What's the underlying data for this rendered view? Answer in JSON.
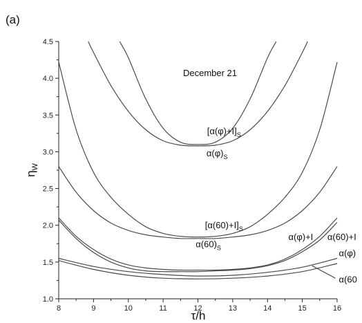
{
  "chart_data": {
    "type": "line",
    "panel_label": "(a)",
    "title": "December 21",
    "xlabel": "τ/h",
    "ylabel_main": "η",
    "ylabel_sub": "W",
    "xlim": [
      8,
      16
    ],
    "ylim": [
      1.0,
      4.5
    ],
    "xticks": [
      8,
      9,
      10,
      11,
      12,
      13,
      14,
      15,
      16
    ],
    "yticks": [
      1.0,
      1.5,
      2.0,
      2.5,
      3.0,
      3.5,
      4.0,
      4.5
    ],
    "series": [
      {
        "name": "[α(φ)+I]S",
        "x": [
          9.75,
          10.0,
          10.5,
          11.0,
          11.5,
          12.0,
          12.5,
          13.0,
          13.5,
          14.0,
          14.25
        ],
        "y": [
          4.5,
          4.28,
          3.72,
          3.32,
          3.13,
          3.1,
          3.13,
          3.32,
          3.72,
          4.28,
          4.5
        ]
      },
      {
        "name": "α(φ)S",
        "x": [
          8.85,
          9.0,
          9.5,
          10.0,
          10.5,
          11.0,
          11.5,
          12.0,
          12.5,
          13.0,
          13.5,
          14.0,
          14.5,
          15.0,
          15.15
        ],
        "y": [
          4.5,
          4.35,
          3.9,
          3.55,
          3.3,
          3.15,
          3.09,
          3.08,
          3.09,
          3.15,
          3.3,
          3.55,
          3.9,
          4.35,
          4.5
        ]
      },
      {
        "name": "[α(60)+I]S",
        "x": [
          8.0,
          8.5,
          9.0,
          9.5,
          10.0,
          10.5,
          11.0,
          11.5,
          12.0,
          12.5,
          13.0,
          13.5,
          14.0,
          14.5,
          15.0,
          15.5,
          16.0
        ],
        "y": [
          4.22,
          3.3,
          2.72,
          2.38,
          2.15,
          1.98,
          1.89,
          1.85,
          1.84,
          1.85,
          1.89,
          1.98,
          2.15,
          2.38,
          2.72,
          3.3,
          4.22
        ]
      },
      {
        "name": "α(60)S",
        "x": [
          8.0,
          8.5,
          9.0,
          9.5,
          10.0,
          10.5,
          11.0,
          11.5,
          12.0,
          12.5,
          13.0,
          13.5,
          14.0,
          14.5,
          15.0,
          15.5,
          16.0
        ],
        "y": [
          2.8,
          2.45,
          2.2,
          2.03,
          1.93,
          1.87,
          1.84,
          1.82,
          1.82,
          1.82,
          1.84,
          1.87,
          1.93,
          2.03,
          2.2,
          2.45,
          2.8
        ]
      },
      {
        "name": "α(φ)+I",
        "x": [
          8.0,
          8.5,
          9.0,
          9.5,
          10.0,
          10.5,
          11.0,
          11.5,
          12.0,
          12.5,
          13.0,
          13.5,
          14.0,
          14.5,
          15.0,
          15.5,
          16.0
        ],
        "y": [
          2.1,
          1.85,
          1.67,
          1.54,
          1.46,
          1.42,
          1.4,
          1.39,
          1.39,
          1.39,
          1.4,
          1.42,
          1.46,
          1.54,
          1.67,
          1.85,
          2.1
        ]
      },
      {
        "name": "α(60)+I",
        "x": [
          8.0,
          8.5,
          9.0,
          9.5,
          10.0,
          10.5,
          11.0,
          11.5,
          12.0,
          12.5,
          13.0,
          13.5,
          14.0,
          14.5,
          15.0,
          15.5,
          16.0
        ],
        "y": [
          2.07,
          1.82,
          1.63,
          1.5,
          1.42,
          1.38,
          1.37,
          1.37,
          1.37,
          1.38,
          1.39,
          1.41,
          1.45,
          1.52,
          1.64,
          1.8,
          2.04
        ]
      },
      {
        "name": "α(φ)",
        "x": [
          8.0,
          9.0,
          10.0,
          11.0,
          12.0,
          13.0,
          14.0,
          15.0,
          16.0
        ],
        "y": [
          1.55,
          1.44,
          1.37,
          1.33,
          1.31,
          1.32,
          1.36,
          1.43,
          1.55
        ]
      },
      {
        "name": "α(60)",
        "x": [
          8.0,
          9.0,
          10.0,
          11.0,
          12.0,
          13.0,
          14.0,
          15.0,
          16.0
        ],
        "y": [
          1.52,
          1.4,
          1.32,
          1.28,
          1.27,
          1.28,
          1.31,
          1.37,
          1.48
        ]
      }
    ],
    "annotations": [
      {
        "main": "[α(φ)+I]",
        "sub": "S",
        "x": 12.75,
        "y": 3.24,
        "anchor": "middle"
      },
      {
        "main": "α(φ)",
        "sub": "S",
        "x": 12.55,
        "y": 2.94,
        "anchor": "middle"
      },
      {
        "main": "[α(60)+I]",
        "sub": "S",
        "x": 12.75,
        "y": 1.96,
        "anchor": "middle"
      },
      {
        "main": "α(60)",
        "sub": "S",
        "x": 12.3,
        "y": 1.7,
        "anchor": "middle"
      },
      {
        "main": "α(φ)+I",
        "sub": "",
        "x": 14.6,
        "y": 1.8,
        "anchor": "start"
      },
      {
        "main": "α(60)+I",
        "sub": "",
        "x": 15.72,
        "y": 1.8,
        "anchor": "start"
      },
      {
        "main": "α(φ)",
        "sub": "",
        "x": 16.05,
        "y": 1.58,
        "anchor": "start"
      },
      {
        "main": "α(60",
        "sub": "",
        "x": 16.05,
        "y": 1.22,
        "anchor": "start"
      }
    ],
    "leaders": [
      {
        "x1": 15.28,
        "y1": 1.45,
        "x2": 15.95,
        "y2": 1.28
      }
    ],
    "grid": false
  }
}
